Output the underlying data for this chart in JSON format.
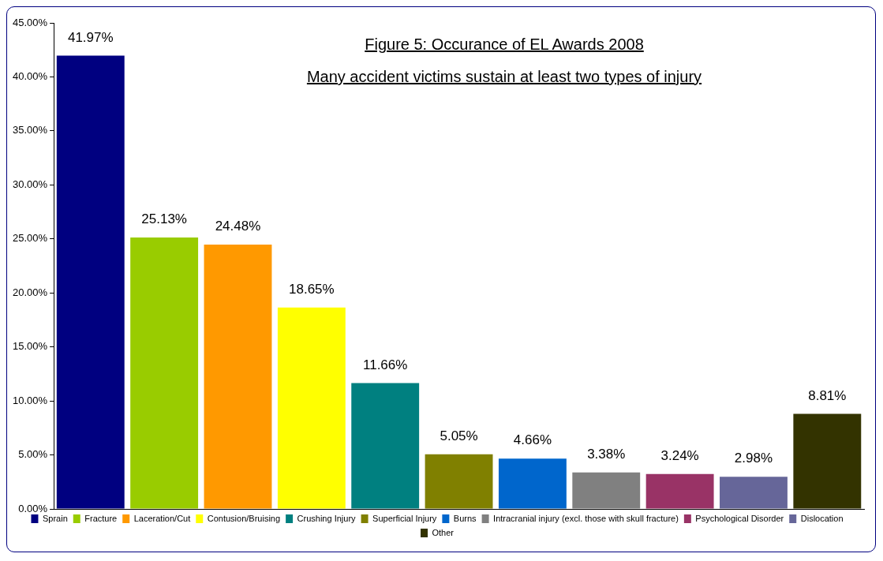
{
  "chart_data": {
    "type": "bar",
    "title": "Figure 5: Occurance of EL Awards 2008",
    "subtitle": "Many accident victims sustain at least two types of injury",
    "categories": [
      null,
      null,
      null,
      null,
      null,
      null,
      null,
      null,
      null,
      null,
      null
    ],
    "series": [
      {
        "name": "Sprain",
        "color": "#000080",
        "values": [
          41.97,
          null,
          null,
          null,
          null,
          null,
          null,
          null,
          null,
          null,
          null
        ],
        "value_labels": [
          "41.97%",
          null,
          null,
          null,
          null,
          null,
          null,
          null,
          null,
          null,
          null
        ]
      },
      {
        "name": "Fracture",
        "color": "#99cc00",
        "values": [
          null,
          25.13,
          null,
          null,
          null,
          null,
          null,
          null,
          null,
          null,
          null
        ],
        "value_labels": [
          null,
          "25.13%",
          null,
          null,
          null,
          null,
          null,
          null,
          null,
          null,
          null
        ]
      },
      {
        "name": "Laceration/Cut",
        "color": "#ff9900",
        "values": [
          null,
          null,
          24.48,
          null,
          null,
          null,
          null,
          null,
          null,
          null,
          null
        ],
        "value_labels": [
          null,
          null,
          "24.48%",
          null,
          null,
          null,
          null,
          null,
          null,
          null,
          null
        ]
      },
      {
        "name": "Contusion/Bruising",
        "color": "#ffff00",
        "values": [
          null,
          null,
          null,
          18.65,
          null,
          null,
          null,
          null,
          null,
          null,
          null
        ],
        "value_labels": [
          null,
          null,
          null,
          "18.65%",
          null,
          null,
          null,
          null,
          null,
          null,
          null
        ]
      },
      {
        "name": "Crushing Injury",
        "color": "#008080",
        "values": [
          null,
          null,
          null,
          null,
          11.66,
          null,
          null,
          null,
          null,
          null,
          null
        ],
        "value_labels": [
          null,
          null,
          null,
          null,
          "11.66%",
          null,
          null,
          null,
          null,
          null,
          null
        ]
      },
      {
        "name": "Superficial Injury",
        "color": "#808000",
        "values": [
          null,
          null,
          null,
          null,
          null,
          5.05,
          null,
          null,
          null,
          null,
          null
        ],
        "value_labels": [
          null,
          null,
          null,
          null,
          null,
          "5.05%",
          null,
          null,
          null,
          null,
          null
        ]
      },
      {
        "name": "Burns",
        "color": "#0066cc",
        "values": [
          null,
          null,
          null,
          null,
          null,
          null,
          4.66,
          null,
          null,
          null,
          null
        ],
        "value_labels": [
          null,
          null,
          null,
          null,
          null,
          null,
          "4.66%",
          null,
          null,
          null,
          null
        ]
      },
      {
        "name": "Intracranial injury (excl. those with skull fracture)",
        "color": "#808080",
        "values": [
          null,
          null,
          null,
          null,
          null,
          null,
          null,
          3.38,
          null,
          null,
          null
        ],
        "value_labels": [
          null,
          null,
          null,
          null,
          null,
          null,
          null,
          "3.38%",
          null,
          null,
          null
        ]
      },
      {
        "name": "Psychological Disorder",
        "color": "#993366",
        "values": [
          null,
          null,
          null,
          null,
          null,
          null,
          null,
          null,
          3.24,
          null,
          null
        ],
        "value_labels": [
          null,
          null,
          null,
          null,
          null,
          null,
          null,
          null,
          "3.24%",
          null,
          null
        ]
      },
      {
        "name": "Dislocation",
        "color": "#666699",
        "values": [
          null,
          null,
          null,
          null,
          null,
          null,
          null,
          null,
          null,
          2.98,
          null
        ],
        "value_labels": [
          null,
          null,
          null,
          null,
          null,
          null,
          null,
          null,
          null,
          "2.98%",
          null
        ]
      },
      {
        "name": "Other",
        "color": "#333300",
        "values": [
          null,
          null,
          null,
          null,
          null,
          null,
          null,
          null,
          null,
          null,
          8.81
        ],
        "value_labels": [
          null,
          null,
          null,
          null,
          null,
          null,
          null,
          null,
          null,
          null,
          "8.81%"
        ]
      }
    ],
    "ylim": [
      0,
      45
    ],
    "yticks": [
      {
        "value": 0,
        "label": "0.00%"
      },
      {
        "value": 5,
        "label": "5.00%"
      },
      {
        "value": 10,
        "label": "10.00%"
      },
      {
        "value": 15,
        "label": "15.00%"
      },
      {
        "value": 20,
        "label": "20.00%"
      },
      {
        "value": 25,
        "label": "25.00%"
      },
      {
        "value": 30,
        "label": "30.00%"
      },
      {
        "value": 35,
        "label": "35.00%"
      },
      {
        "value": 40,
        "label": "40.00%"
      },
      {
        "value": 45,
        "label": "45.00%"
      }
    ],
    "tick_labels": "y",
    "grid": false,
    "legend": "bottom"
  }
}
